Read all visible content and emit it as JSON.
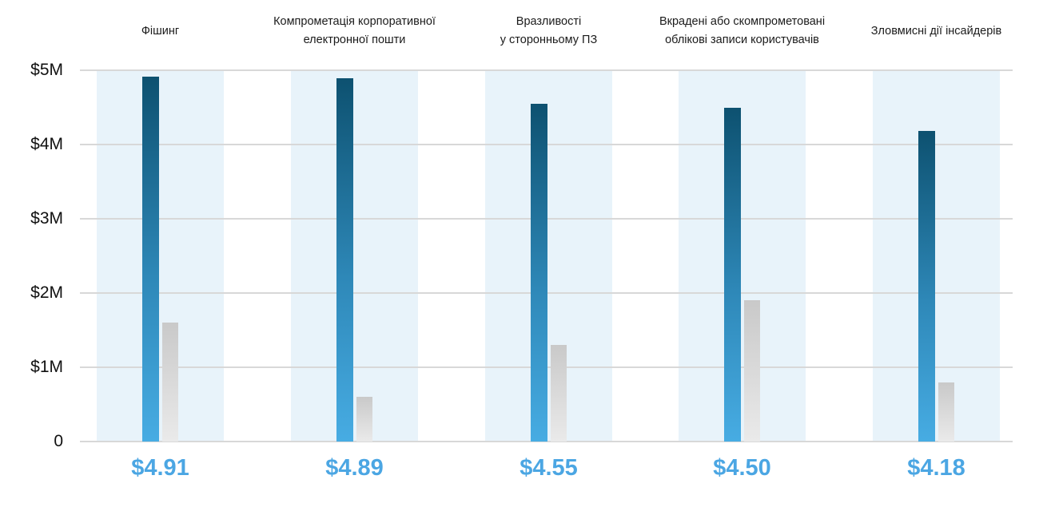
{
  "chart_data": {
    "type": "bar",
    "title": "",
    "categories": [
      "Фішинг",
      "Компрометація корпоративної\nелектронної пошти",
      "Вразливості\nу сторонньому ПЗ",
      "Вкрадені або скомпрометовані\nоблікові записи користувачів",
      "Зловмисні дії інсайдерів"
    ],
    "series": [
      {
        "name": "primary-blue",
        "values": [
          4.91,
          4.89,
          4.55,
          4.5,
          4.18
        ]
      },
      {
        "name": "secondary-gray",
        "values": [
          1.6,
          0.6,
          1.3,
          1.9,
          0.8
        ]
      }
    ],
    "value_labels": [
      "$4.91",
      "$4.89",
      "$4.55",
      "$4.50",
      "$4.18"
    ],
    "y_ticks": [
      "$5M",
      "$4M",
      "$3M",
      "$2M",
      "$1M",
      "0"
    ],
    "ylim": [
      0,
      5
    ],
    "unit": "USD millions",
    "grid": true,
    "legend": "none"
  },
  "colors": {
    "background": "#ffffff",
    "band": "#e8f3fa",
    "gridline": "#d8d8d8",
    "tick_text": "#111111",
    "category_text": "#1b1b1b",
    "value_text": "#4ba6e3",
    "bar_blue_top": "#0d5170",
    "bar_blue_mid": "#2e88b8",
    "bar_blue_bottom": "#47ace3",
    "bar_gray_top": "#c9c9c9",
    "bar_gray_bottom": "#eaeaea"
  }
}
